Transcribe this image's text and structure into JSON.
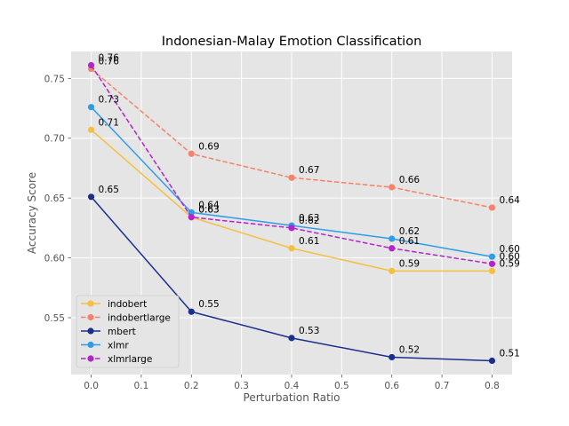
{
  "chart_data": {
    "type": "line",
    "title": "Indonesian-Malay Emotion Classification",
    "xlabel": "Perturbation Ratio",
    "ylabel": "Accuracy Score",
    "x": [
      0.0,
      0.2,
      0.4,
      0.6,
      0.8
    ],
    "xlim": [
      -0.04,
      0.84
    ],
    "ylim": [
      0.5025,
      0.7725
    ],
    "xticks": [
      0.0,
      0.1,
      0.2,
      0.3,
      0.4,
      0.5,
      0.6,
      0.7,
      0.8
    ],
    "xtick_labels": [
      "0.0",
      "0.1",
      "0.2",
      "0.3",
      "0.4",
      "0.5",
      "0.6",
      "0.7",
      "0.8"
    ],
    "yticks": [
      0.55,
      0.6,
      0.65,
      0.7,
      0.75
    ],
    "ytick_labels": [
      "0.55",
      "0.60",
      "0.65",
      "0.70",
      "0.75"
    ],
    "grid": true,
    "legend_position": "lower-left",
    "background_color": "#e5e5e5",
    "series": [
      {
        "name": "indobert",
        "color": "#f5c040",
        "dashed": false,
        "values": [
          0.707,
          0.634,
          0.608,
          0.589,
          0.589
        ],
        "labels": [
          "0.71",
          "0.63",
          "0.61",
          "0.59",
          "0.59"
        ]
      },
      {
        "name": "indobertlarge",
        "color": "#f5836a",
        "dashed": true,
        "values": [
          0.758,
          0.687,
          0.667,
          0.659,
          0.642
        ],
        "labels": [
          "0.76",
          "0.69",
          "0.67",
          "0.66",
          "0.64"
        ]
      },
      {
        "name": "mbert",
        "color": "#1a2e8c",
        "dashed": false,
        "values": [
          0.651,
          0.555,
          0.533,
          0.517,
          0.514
        ],
        "labels": [
          "0.65",
          "0.55",
          "0.53",
          "0.52",
          "0.51"
        ]
      },
      {
        "name": "xlmr",
        "color": "#2f9ce8",
        "dashed": false,
        "values": [
          0.726,
          0.638,
          0.627,
          0.616,
          0.601
        ],
        "labels": [
          "0.73",
          "0.64",
          "0.63",
          "0.62",
          "0.60"
        ]
      },
      {
        "name": "xlmrlarge",
        "color": "#b125c9",
        "dashed": true,
        "values": [
          0.761,
          0.634,
          0.625,
          0.608,
          0.595
        ],
        "labels": [
          "0.76",
          "0.63",
          "0.62",
          "0.61",
          "0.60"
        ]
      }
    ]
  }
}
